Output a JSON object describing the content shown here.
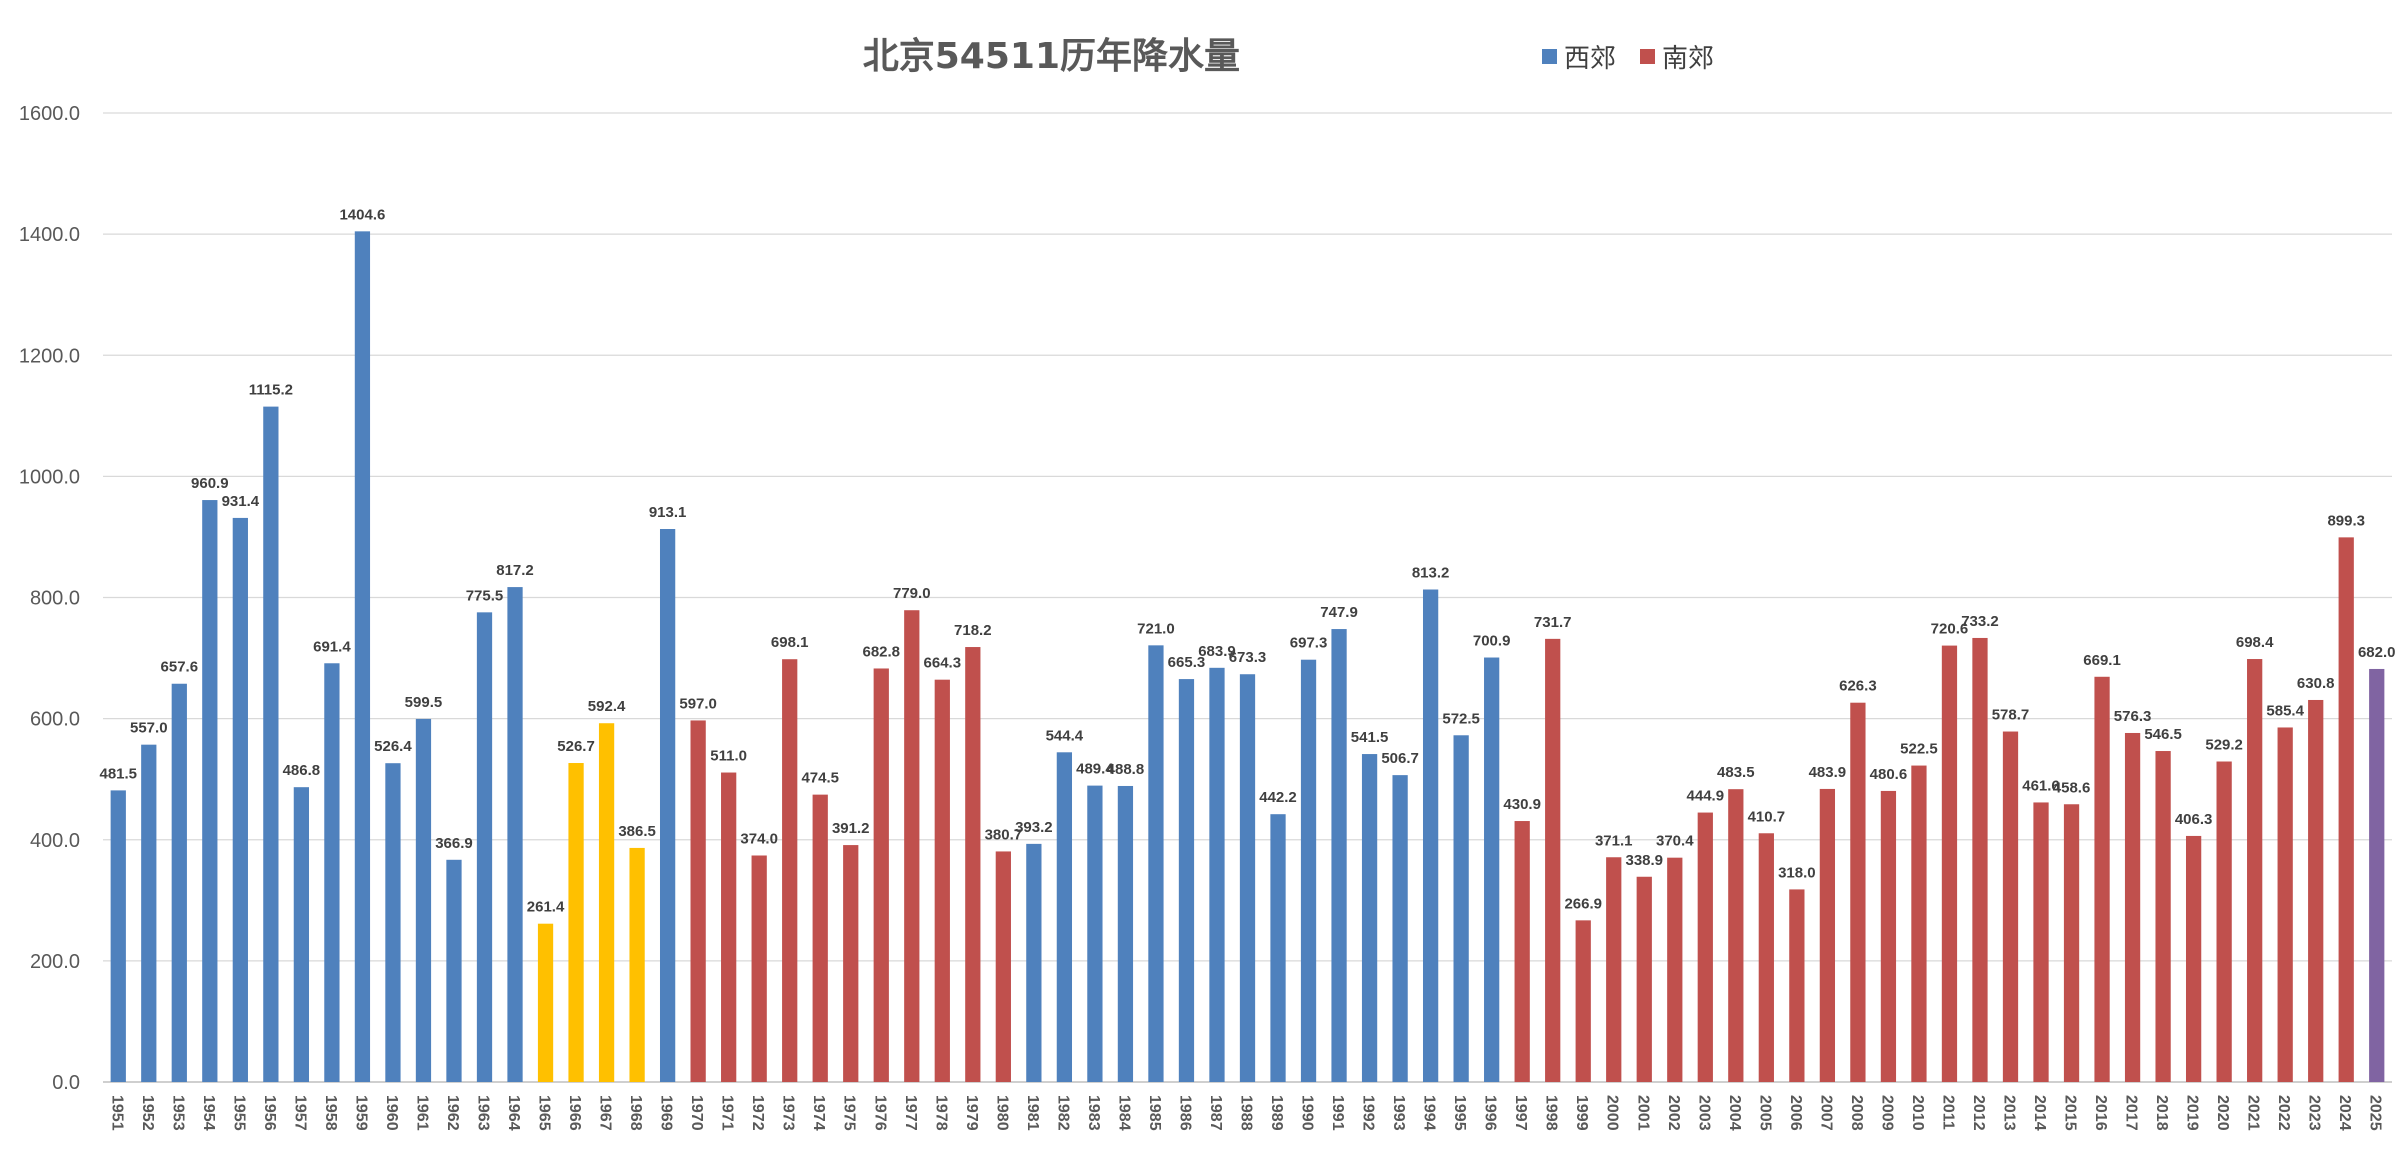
{
  "chart_data": {
    "type": "bar",
    "title": "北京54511历年降水量",
    "xlabel": "",
    "ylabel": "",
    "ylim": [
      0,
      1600
    ],
    "y_ticks": [
      "0.0",
      "200.0",
      "400.0",
      "600.0",
      "800.0",
      "1000.0",
      "1200.0",
      "1400.0",
      "1600.0"
    ],
    "grid": true,
    "legend_position": "top-center",
    "legend": [
      {
        "name": "西郊",
        "color": "#4f81bd"
      },
      {
        "name": "南郊",
        "color": "#c0504d"
      }
    ],
    "colors": {
      "xijiao": "#4f81bd",
      "nanjiao": "#c0504d",
      "highlight": "#ffc000",
      "current": "#8064a2"
    },
    "categories": [
      "1951",
      "1952",
      "1953",
      "1954",
      "1955",
      "1956",
      "1957",
      "1958",
      "1959",
      "1960",
      "1961",
      "1962",
      "1963",
      "1964",
      "1965",
      "1966",
      "1967",
      "1968",
      "1969",
      "1970",
      "1971",
      "1972",
      "1973",
      "1974",
      "1975",
      "1976",
      "1977",
      "1978",
      "1979",
      "1980",
      "1981",
      "1982",
      "1983",
      "1984",
      "1985",
      "1986",
      "1987",
      "1988",
      "1989",
      "1990",
      "1991",
      "1992",
      "1993",
      "1994",
      "1995",
      "1996",
      "1997",
      "1998",
      "1999",
      "2000",
      "2001",
      "2002",
      "2003",
      "2004",
      "2005",
      "2006",
      "2007",
      "2008",
      "2009",
      "2010",
      "2011",
      "2012",
      "2013",
      "2014",
      "2015",
      "2016",
      "2017",
      "2018",
      "2019",
      "2020",
      "2021",
      "2022",
      "2023",
      "2024",
      "2025"
    ],
    "values": [
      481.5,
      557.0,
      657.6,
      960.9,
      931.4,
      1115.2,
      486.8,
      691.4,
      1404.6,
      526.4,
      599.5,
      366.9,
      775.5,
      817.2,
      261.4,
      526.7,
      592.4,
      386.5,
      913.1,
      597.0,
      511.0,
      374.0,
      698.1,
      474.5,
      391.2,
      682.8,
      779.0,
      664.3,
      718.2,
      380.7,
      393.2,
      544.4,
      489.4,
      488.8,
      721.0,
      665.3,
      683.9,
      673.3,
      442.2,
      697.3,
      747.9,
      541.5,
      506.7,
      813.2,
      572.5,
      700.9,
      430.9,
      731.7,
      266.9,
      371.1,
      338.9,
      370.4,
      444.9,
      483.5,
      410.7,
      318.0,
      483.9,
      626.3,
      480.6,
      522.5,
      720.6,
      733.2,
      578.7,
      461.6,
      458.6,
      669.1,
      576.3,
      546.5,
      406.3,
      529.2,
      698.4,
      585.4,
      630.8,
      899.3,
      682.0
    ],
    "data_labels": [
      "481.5",
      "557.0",
      "657.6",
      "960.9",
      "931.4",
      "1115.2",
      "486.8",
      "691.4",
      "1404.6",
      "526.4",
      "599.5",
      "366.9",
      "775.5",
      "817.2",
      "261.4",
      "526.7",
      "592.4",
      "386.5",
      "913.1",
      "597.0",
      "511.0",
      "374.0",
      "698.1",
      "474.5",
      "391.2",
      "682.8",
      "779.0",
      "664.3",
      "718.2",
      "380.7",
      "393.2",
      "544.4",
      "489.4",
      "488.8",
      "721.0",
      "665.3",
      "683.9",
      "673.3",
      "442.2",
      "697.3",
      "747.9",
      "541.5",
      "506.7",
      "813.2",
      "572.5",
      "700.9",
      "430.9",
      "731.7",
      "266.9",
      "371.1",
      "338.9",
      "370.4",
      "444.9",
      "483.5",
      "410.7",
      "318.0",
      "483.9",
      "626.3",
      "480.6",
      "522.5",
      "720.6",
      "733.2",
      "578.7",
      "461.6",
      "458.6",
      "669.1",
      "576.3",
      "546.5",
      "406.3",
      "529.2",
      "698.4",
      "585.4",
      "630.8",
      "899.3",
      "682.0"
    ],
    "bar_colors": [
      "xijiao",
      "xijiao",
      "xijiao",
      "xijiao",
      "xijiao",
      "xijiao",
      "xijiao",
      "xijiao",
      "xijiao",
      "xijiao",
      "xijiao",
      "xijiao",
      "xijiao",
      "xijiao",
      "highlight",
      "highlight",
      "highlight",
      "highlight",
      "xijiao",
      "nanjiao",
      "nanjiao",
      "nanjiao",
      "nanjiao",
      "nanjiao",
      "nanjiao",
      "nanjiao",
      "nanjiao",
      "nanjiao",
      "nanjiao",
      "nanjiao",
      "xijiao",
      "xijiao",
      "xijiao",
      "xijiao",
      "xijiao",
      "xijiao",
      "xijiao",
      "xijiao",
      "xijiao",
      "xijiao",
      "xijiao",
      "xijiao",
      "xijiao",
      "xijiao",
      "xijiao",
      "xijiao",
      "nanjiao",
      "nanjiao",
      "nanjiao",
      "nanjiao",
      "nanjiao",
      "nanjiao",
      "nanjiao",
      "nanjiao",
      "nanjiao",
      "nanjiao",
      "nanjiao",
      "nanjiao",
      "nanjiao",
      "nanjiao",
      "nanjiao",
      "nanjiao",
      "nanjiao",
      "nanjiao",
      "nanjiao",
      "nanjiao",
      "nanjiao",
      "nanjiao",
      "nanjiao",
      "nanjiao",
      "nanjiao",
      "nanjiao",
      "nanjiao",
      "nanjiao",
      "current"
    ]
  }
}
